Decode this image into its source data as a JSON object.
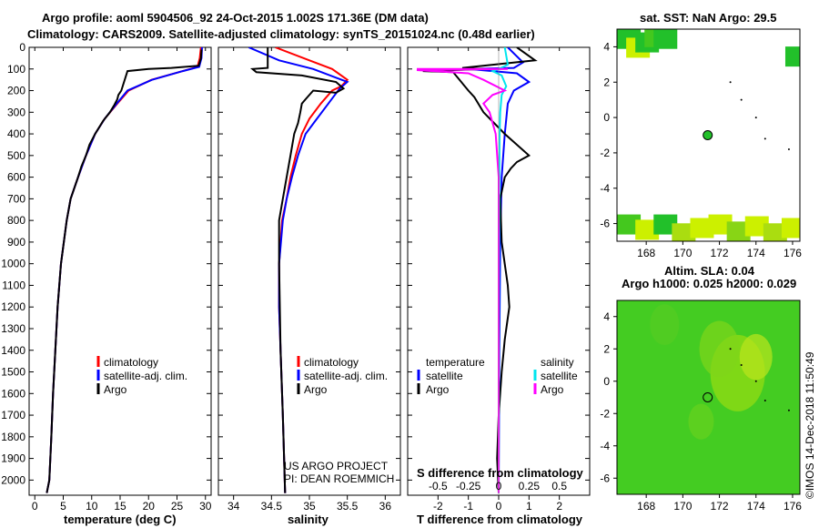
{
  "title": {
    "line1": "Argo profile: aoml 5904506_92 24-Oct-2015 1.002S 171.36E (DM data)",
    "line2": "Climatology: CARS2009. Satellite-adjusted climatology: synTS_20151024.nc (0.48d earlier)"
  },
  "credit": {
    "project": "US ARGO PROJECT",
    "pi": "PI: DEAN ROEMMICH",
    "stamp": "©IMOS 14-Dec-2018 11:50:49"
  },
  "colors": {
    "climatology": "#ff0000",
    "satellite": "#0000ff",
    "argo": "#000000",
    "sal_satellite": "#00e5ee",
    "sal_argo": "#ff00ff",
    "sst_green": "#22c02a",
    "sst_yellow": "#ccf000",
    "sla_green": "#44cc22"
  },
  "chart_data": [
    {
      "type": "line",
      "id": "temperature",
      "xlabel": "temperature (deg C)",
      "ylabel": "",
      "xlim": [
        -1,
        31
      ],
      "ylim": [
        2070,
        0
      ],
      "xticks": [
        "0",
        "5",
        "10",
        "15",
        "20",
        "25",
        "30"
      ],
      "yticks": [
        "0",
        "100",
        "200",
        "300",
        "400",
        "500",
        "600",
        "700",
        "800",
        "900",
        "1000",
        "1100",
        "1200",
        "1300",
        "1400",
        "1500",
        "1600",
        "1700",
        "1800",
        "1900",
        "2000"
      ],
      "legend": [
        "climatology",
        "satellite-adj. clim.",
        "Argo"
      ],
      "series": [
        {
          "name": "climatology",
          "x": [
            29.2,
            29.0,
            28.6,
            26,
            20.5,
            16.5,
            14.5,
            12.3,
            10.6,
            9.0,
            7.6,
            6.3,
            5.6,
            4.6,
            4.0,
            3.6,
            3.2,
            2.9,
            2.55,
            2.1
          ],
          "y": [
            0,
            50,
            90,
            110,
            150,
            200,
            260,
            330,
            400,
            500,
            600,
            700,
            800,
            1000,
            1200,
            1400,
            1600,
            1800,
            2000,
            2060
          ]
        },
        {
          "name": "satellite-adj. clim.",
          "x": [
            29.4,
            29.3,
            28.9,
            26,
            20.6,
            16.3,
            14.4,
            12.3,
            10.6,
            9.0,
            7.6,
            6.3,
            5.6,
            4.6,
            4.0,
            3.6,
            3.2,
            2.9,
            2.55,
            2.1
          ],
          "y": [
            0,
            50,
            90,
            110,
            150,
            200,
            260,
            330,
            400,
            500,
            600,
            700,
            800,
            1000,
            1200,
            1400,
            1600,
            1800,
            2000,
            2060
          ]
        },
        {
          "name": "Argo",
          "x": [
            29.3,
            29.2,
            28.8,
            24.0,
            20.0,
            16.3,
            15.2,
            14.7,
            14.5,
            14.0,
            13.2,
            12.0,
            10.6,
            9.6,
            9.0,
            8.2,
            7.6,
            6.3,
            5.6,
            4.6,
            4.0,
            3.6,
            3.2,
            2.9,
            2.55,
            2.1
          ],
          "y": [
            10,
            50,
            85,
            95,
            100,
            110,
            200,
            220,
            240,
            265,
            300,
            340,
            400,
            450,
            500,
            550,
            600,
            700,
            800,
            1000,
            1200,
            1400,
            1600,
            1800,
            2000,
            2060
          ]
        }
      ]
    },
    {
      "type": "line",
      "id": "salinity",
      "xlabel": "salinity",
      "xlim": [
        33.8,
        36.2
      ],
      "ylim": [
        2070,
        0
      ],
      "xticks": [
        "34",
        "34.5",
        "35",
        "35.5",
        "36"
      ],
      "legend": [
        "climatology",
        "satellite-adj. clim.",
        "Argo"
      ],
      "series": [
        {
          "name": "climatology",
          "x": [
            34.55,
            35.0,
            35.3,
            35.5,
            35.42,
            35.3,
            35.15,
            35.0,
            34.9,
            34.82,
            34.75,
            34.7,
            34.64,
            34.6,
            34.6,
            34.62,
            34.65,
            34.68
          ],
          "y": [
            0,
            60,
            100,
            150,
            180,
            200,
            260,
            330,
            400,
            500,
            600,
            700,
            800,
            1000,
            1200,
            1400,
            1700,
            2060
          ]
        },
        {
          "name": "satellite-adj. clim.",
          "x": [
            34.2,
            34.6,
            35.05,
            35.35,
            35.5,
            35.4,
            35.25,
            35.1,
            34.95,
            34.85,
            34.77,
            34.7,
            34.65,
            34.6,
            34.6,
            34.62,
            34.65,
            34.68
          ],
          "y": [
            0,
            60,
            100,
            140,
            160,
            190,
            260,
            330,
            400,
            500,
            600,
            700,
            800,
            1000,
            1200,
            1400,
            1700,
            2060
          ]
        },
        {
          "name": "Argo",
          "x": [
            34.45,
            34.45,
            34.25,
            34.3,
            34.9,
            35.35,
            35.45,
            35.35,
            35.05,
            34.95,
            34.9,
            34.88,
            34.85,
            34.8,
            34.75,
            34.7,
            34.65,
            34.6,
            34.6,
            34.62,
            34.65,
            34.68
          ],
          "y": [
            0,
            95,
            100,
            115,
            130,
            160,
            190,
            210,
            200,
            240,
            260,
            300,
            350,
            400,
            500,
            600,
            700,
            800,
            1000,
            1400,
            1700,
            2060
          ]
        }
      ]
    },
    {
      "type": "line",
      "id": "difference",
      "xlabel": "T difference from climatology",
      "title2": "S difference from climatology",
      "xlim": [
        -3,
        3
      ],
      "ylim": [
        2070,
        0
      ],
      "xticks": [
        "-2",
        "-1",
        "0",
        "1",
        "2"
      ],
      "sticks": [
        "-0.5",
        "-0.25",
        "0",
        "0.25",
        "0.5"
      ],
      "legend_left_title": "temperature",
      "legend_right_title": "salinity",
      "legend_left": [
        "satellite",
        "Argo"
      ],
      "legend_right": [
        "satellite",
        "Argo"
      ],
      "series": [
        {
          "name": "temperature satellite",
          "x": [
            0.3,
            0.8,
            0.5,
            -1.0,
            0.6,
            1.0,
            0.5,
            0.3,
            0.2,
            0.1,
            0.05,
            0.02,
            0
          ],
          "y": [
            0,
            70,
            95,
            100,
            120,
            160,
            200,
            260,
            400,
            600,
            900,
            1400,
            2060
          ]
        },
        {
          "name": "temperature Argo",
          "x": [
            0.6,
            1.2,
            -1.2,
            -0.5,
            -2.5,
            -1.5,
            -1.0,
            -0.8,
            -0.5,
            0.2,
            1.0,
            0.6,
            0.4,
            0.2,
            0.05,
            0.1,
            0.3,
            0.35,
            0.2,
            0.1,
            0,
            -0.05,
            0
          ],
          "y": [
            0,
            60,
            95,
            100,
            110,
            115,
            200,
            230,
            300,
            400,
            500,
            530,
            560,
            600,
            700,
            900,
            1100,
            1200,
            1350,
            1500,
            1700,
            1900,
            2060
          ]
        },
        {
          "name": "salinity satellite",
          "x": [
            0.2,
            0.3,
            0.0,
            -0.2,
            0.1,
            0.25,
            0.1,
            0.05,
            0.03,
            0.02,
            0.01,
            0
          ],
          "y": [
            0,
            80,
            100,
            110,
            130,
            180,
            220,
            300,
            400,
            600,
            1000,
            2060
          ]
        },
        {
          "name": "salinity Argo",
          "x": [
            -2.7,
            0.3,
            -2.7,
            -1.0,
            -0.5,
            0.2,
            -0.2,
            -0.5,
            -0.3,
            -0.1,
            0,
            0,
            0
          ],
          "y": [
            100,
            100,
            105,
            120,
            150,
            200,
            220,
            260,
            300,
            400,
            600,
            1000,
            2060
          ]
        }
      ]
    },
    {
      "type": "heatmap",
      "id": "sst-map",
      "title": "sat. SST: NaN Argo: 29.5",
      "xticks": [
        "168",
        "170",
        "172",
        "174",
        "176"
      ],
      "yticks": [
        "4",
        "2",
        "0",
        "-2",
        "-4",
        "-6"
      ],
      "xlim": [
        166.4,
        176.4
      ],
      "ylim": [
        -7,
        5
      ],
      "argo_marker": {
        "lon": 171.36,
        "lat": -1.0
      }
    },
    {
      "type": "heatmap",
      "id": "sla-map",
      "title": "Altim. SLA: 0.04",
      "subtitle": "Argo h1000: 0.025 h2000: 0.029",
      "xticks": [
        "168",
        "170",
        "172",
        "174",
        "176"
      ],
      "yticks": [
        "4",
        "2",
        "0",
        "-2",
        "-4",
        "-6"
      ],
      "xlim": [
        166.4,
        176.4
      ],
      "ylim": [
        -7,
        5
      ],
      "argo_marker": {
        "lon": 171.36,
        "lat": -1.0
      }
    }
  ]
}
